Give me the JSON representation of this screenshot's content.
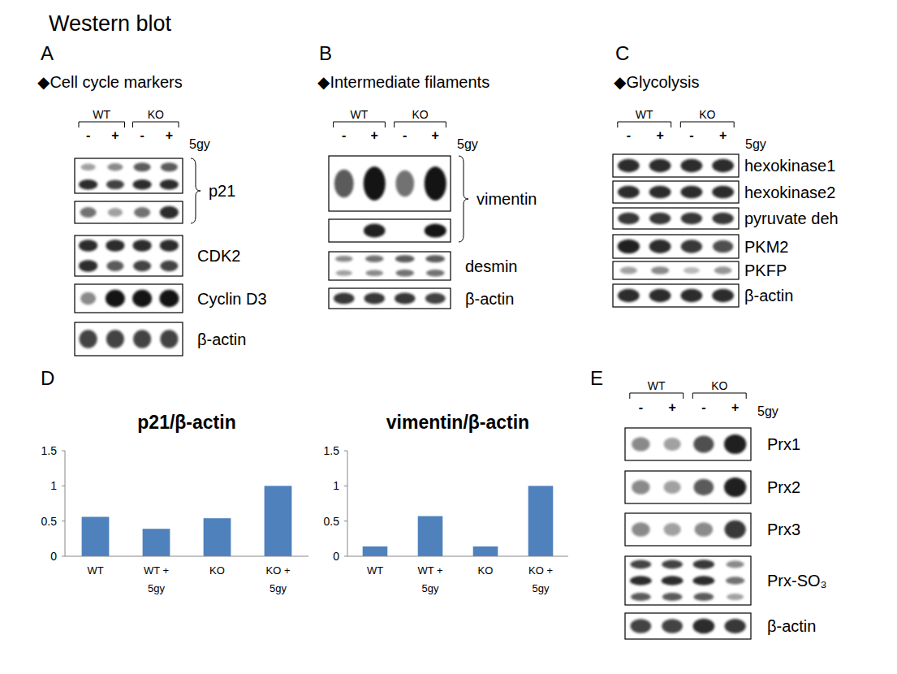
{
  "figure": {
    "title": "Western blot",
    "chart_panel_label": "D",
    "panels": [
      {
        "label": "A",
        "heading": "◆Cell cycle markers",
        "groups": [
          "WT",
          "KO"
        ],
        "lanes": [
          "-",
          "+",
          "-",
          "+"
        ],
        "treatment": "5gy",
        "blots": [
          {
            "label": "p21",
            "boxes": [
              [
                [
                  0.4,
                  0.5,
                  0.7,
                  0.7
                ],
                [
                  0.9,
                  0.8,
                  0.9,
                  0.9
                ]
              ],
              [
                [
                  0.6,
                  0.4,
                  0.6,
                  0.9
                ]
              ]
            ]
          },
          {
            "label": "CDK2",
            "boxes": [
              [
                [
                  0.9,
                  0.9,
                  0.9,
                  0.9
                ],
                [
                  0.9,
                  0.7,
                  0.8,
                  0.8
                ]
              ]
            ]
          },
          {
            "label": "Cyclin D3",
            "boxes": [
              [
                [
                  0.5,
                  1,
                  1,
                  1
                ]
              ]
            ]
          },
          {
            "label": "β-actin",
            "boxes": [
              [
                [
                  0.8,
                  0.8,
                  0.8,
                  0.8
                ]
              ]
            ]
          }
        ]
      },
      {
        "label": "B",
        "heading": "◆Intermediate filaments",
        "groups": [
          "WT",
          "KO"
        ],
        "lanes": [
          "-",
          "+",
          "-",
          "+"
        ],
        "treatment": "5gy",
        "blots": [
          {
            "label": "vimentin",
            "boxes": [
              [
                [
                  0.7,
                  1,
                  0.6,
                  1
                ]
              ],
              [
                [
                  0,
                  0.95,
                  0,
                  1
                ]
              ]
            ]
          },
          {
            "label": "desmin",
            "boxes": [
              [
                [
                  0.5,
                  0.6,
                  0.7,
                  0.7
                ],
                [
                  0.4,
                  0.5,
                  0.6,
                  0.6
                ]
              ]
            ]
          },
          {
            "label": "β-actin",
            "boxes": [
              [
                [
                  0.85,
                  0.85,
                  0.85,
                  0.8
                ]
              ]
            ]
          }
        ]
      },
      {
        "label": "C",
        "heading": "◆Glycolysis",
        "groups": [
          "WT",
          "KO"
        ],
        "lanes": [
          "-",
          "+",
          "-",
          "+"
        ],
        "treatment": "5gy",
        "blots": [
          {
            "label": "hexokinase1",
            "boxes": [
              [
                [
                  0.9,
                  0.9,
                  0.9,
                  0.9
                ]
              ]
            ]
          },
          {
            "label": "hexokinase2",
            "boxes": [
              [
                [
                  0.9,
                  0.9,
                  0.9,
                  0.9
                ]
              ]
            ]
          },
          {
            "label": "pyruvate deh",
            "boxes": [
              [
                [
                  0.85,
                  0.85,
                  0.85,
                  0.85
                ]
              ]
            ]
          },
          {
            "label": "PKM2",
            "boxes": [
              [
                [
                  0.95,
                  0.9,
                  0.85,
                  0.75
                ]
              ]
            ]
          },
          {
            "label": "PKFP",
            "boxes": [
              [
                [
                  0.4,
                  0.5,
                  0.3,
                  0.45
                ]
              ]
            ]
          },
          {
            "label": "β-actin",
            "boxes": [
              [
                [
                  0.9,
                  0.9,
                  0.9,
                  0.9
                ]
              ]
            ]
          }
        ]
      },
      {
        "label": "E",
        "heading": null,
        "groups": [
          "WT",
          "KO"
        ],
        "lanes": [
          "-",
          "+",
          "-",
          "+"
        ],
        "treatment": "5gy",
        "blots": [
          {
            "label": "Prx1",
            "boxes": [
              [
                [
                  0.5,
                  0.4,
                  0.75,
                  0.95
                ]
              ]
            ]
          },
          {
            "label": "Prx2",
            "boxes": [
              [
                [
                  0.5,
                  0.4,
                  0.7,
                  0.95
                ]
              ]
            ]
          },
          {
            "label": "Prx3",
            "boxes": [
              [
                [
                  0.5,
                  0.4,
                  0.5,
                  0.85
                ]
              ]
            ]
          },
          {
            "label": "Prx-SO₃",
            "boxes": [
              [
                [
                  0.8,
                  0.8,
                  0.85,
                  0.5
                ],
                [
                  0.9,
                  0.9,
                  0.9,
                  0.6
                ],
                [
                  0.7,
                  0.7,
                  0.7,
                  0.4
                ]
              ]
            ]
          },
          {
            "label": "β-actin",
            "boxes": [
              [
                [
                  0.8,
                  0.8,
                  0.9,
                  0.85
                ]
              ]
            ]
          }
        ]
      }
    ]
  },
  "chart_data": [
    {
      "type": "bar",
      "title": "p21/β-actin",
      "categories": [
        "WT",
        "WT +\n5gy",
        "KO",
        "KO +\n5gy"
      ],
      "values": [
        0.56,
        0.39,
        0.54,
        1.0
      ],
      "color": "#4f81bd",
      "ylim": [
        0,
        1.5
      ],
      "yticks": [
        0,
        0.5,
        1,
        1.5
      ],
      "grid": false
    },
    {
      "type": "bar",
      "title": "vimentin/β-actin",
      "categories": [
        "WT",
        "WT +\n5gy",
        "KO",
        "KO +\n5gy"
      ],
      "values": [
        0.14,
        0.57,
        0.14,
        1.0
      ],
      "color": "#4f81bd",
      "ylim": [
        0,
        1.5
      ],
      "yticks": [
        0,
        0.5,
        1,
        1.5
      ],
      "grid": false
    }
  ]
}
